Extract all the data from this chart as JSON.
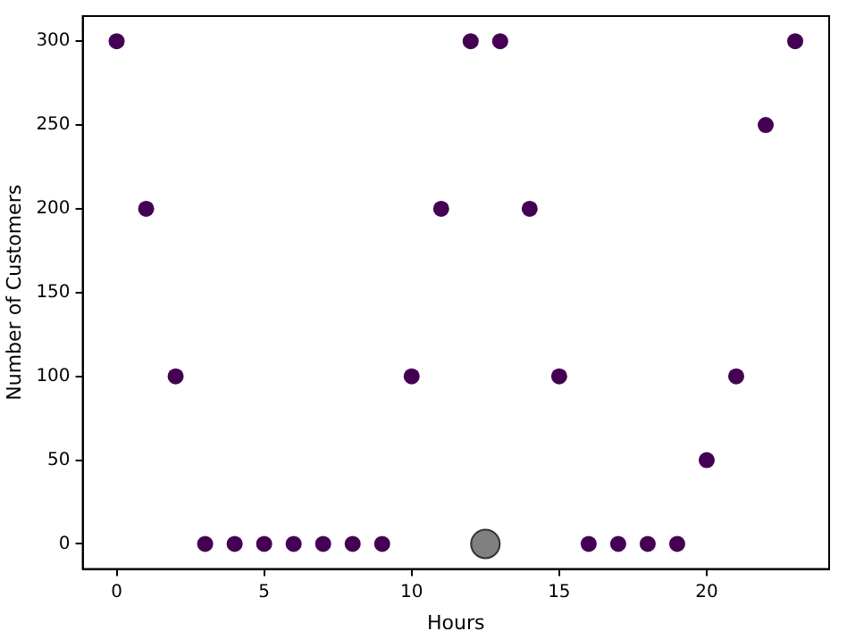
{
  "chart_data": {
    "type": "scatter",
    "xlabel": "Hours",
    "ylabel": "Number of Customers",
    "series": [
      {
        "color": "#440154",
        "x": [
          0,
          1,
          2,
          3,
          4,
          5,
          6,
          7,
          8,
          9,
          10,
          11,
          12,
          13,
          14,
          15,
          16,
          17,
          18,
          19,
          20,
          21,
          22,
          23
        ],
        "values": [
          300,
          200,
          100,
          0,
          0,
          0,
          0,
          0,
          0,
          0,
          100,
          200,
          300,
          300,
          200,
          100,
          0,
          0,
          0,
          0,
          50,
          100,
          250,
          300
        ]
      },
      {
        "color": "#808080",
        "x": [
          12.5
        ],
        "values": [
          0
        ]
      }
    ],
    "xlim": [
      -1.15,
      24.15
    ],
    "xticks": [
      0,
      5,
      10,
      15,
      20
    ],
    "ylim": [
      -15,
      315
    ],
    "yticks": [
      0,
      50,
      100,
      150,
      200,
      250,
      300
    ],
    "grid": false,
    "legend": false,
    "marker": "circle"
  }
}
